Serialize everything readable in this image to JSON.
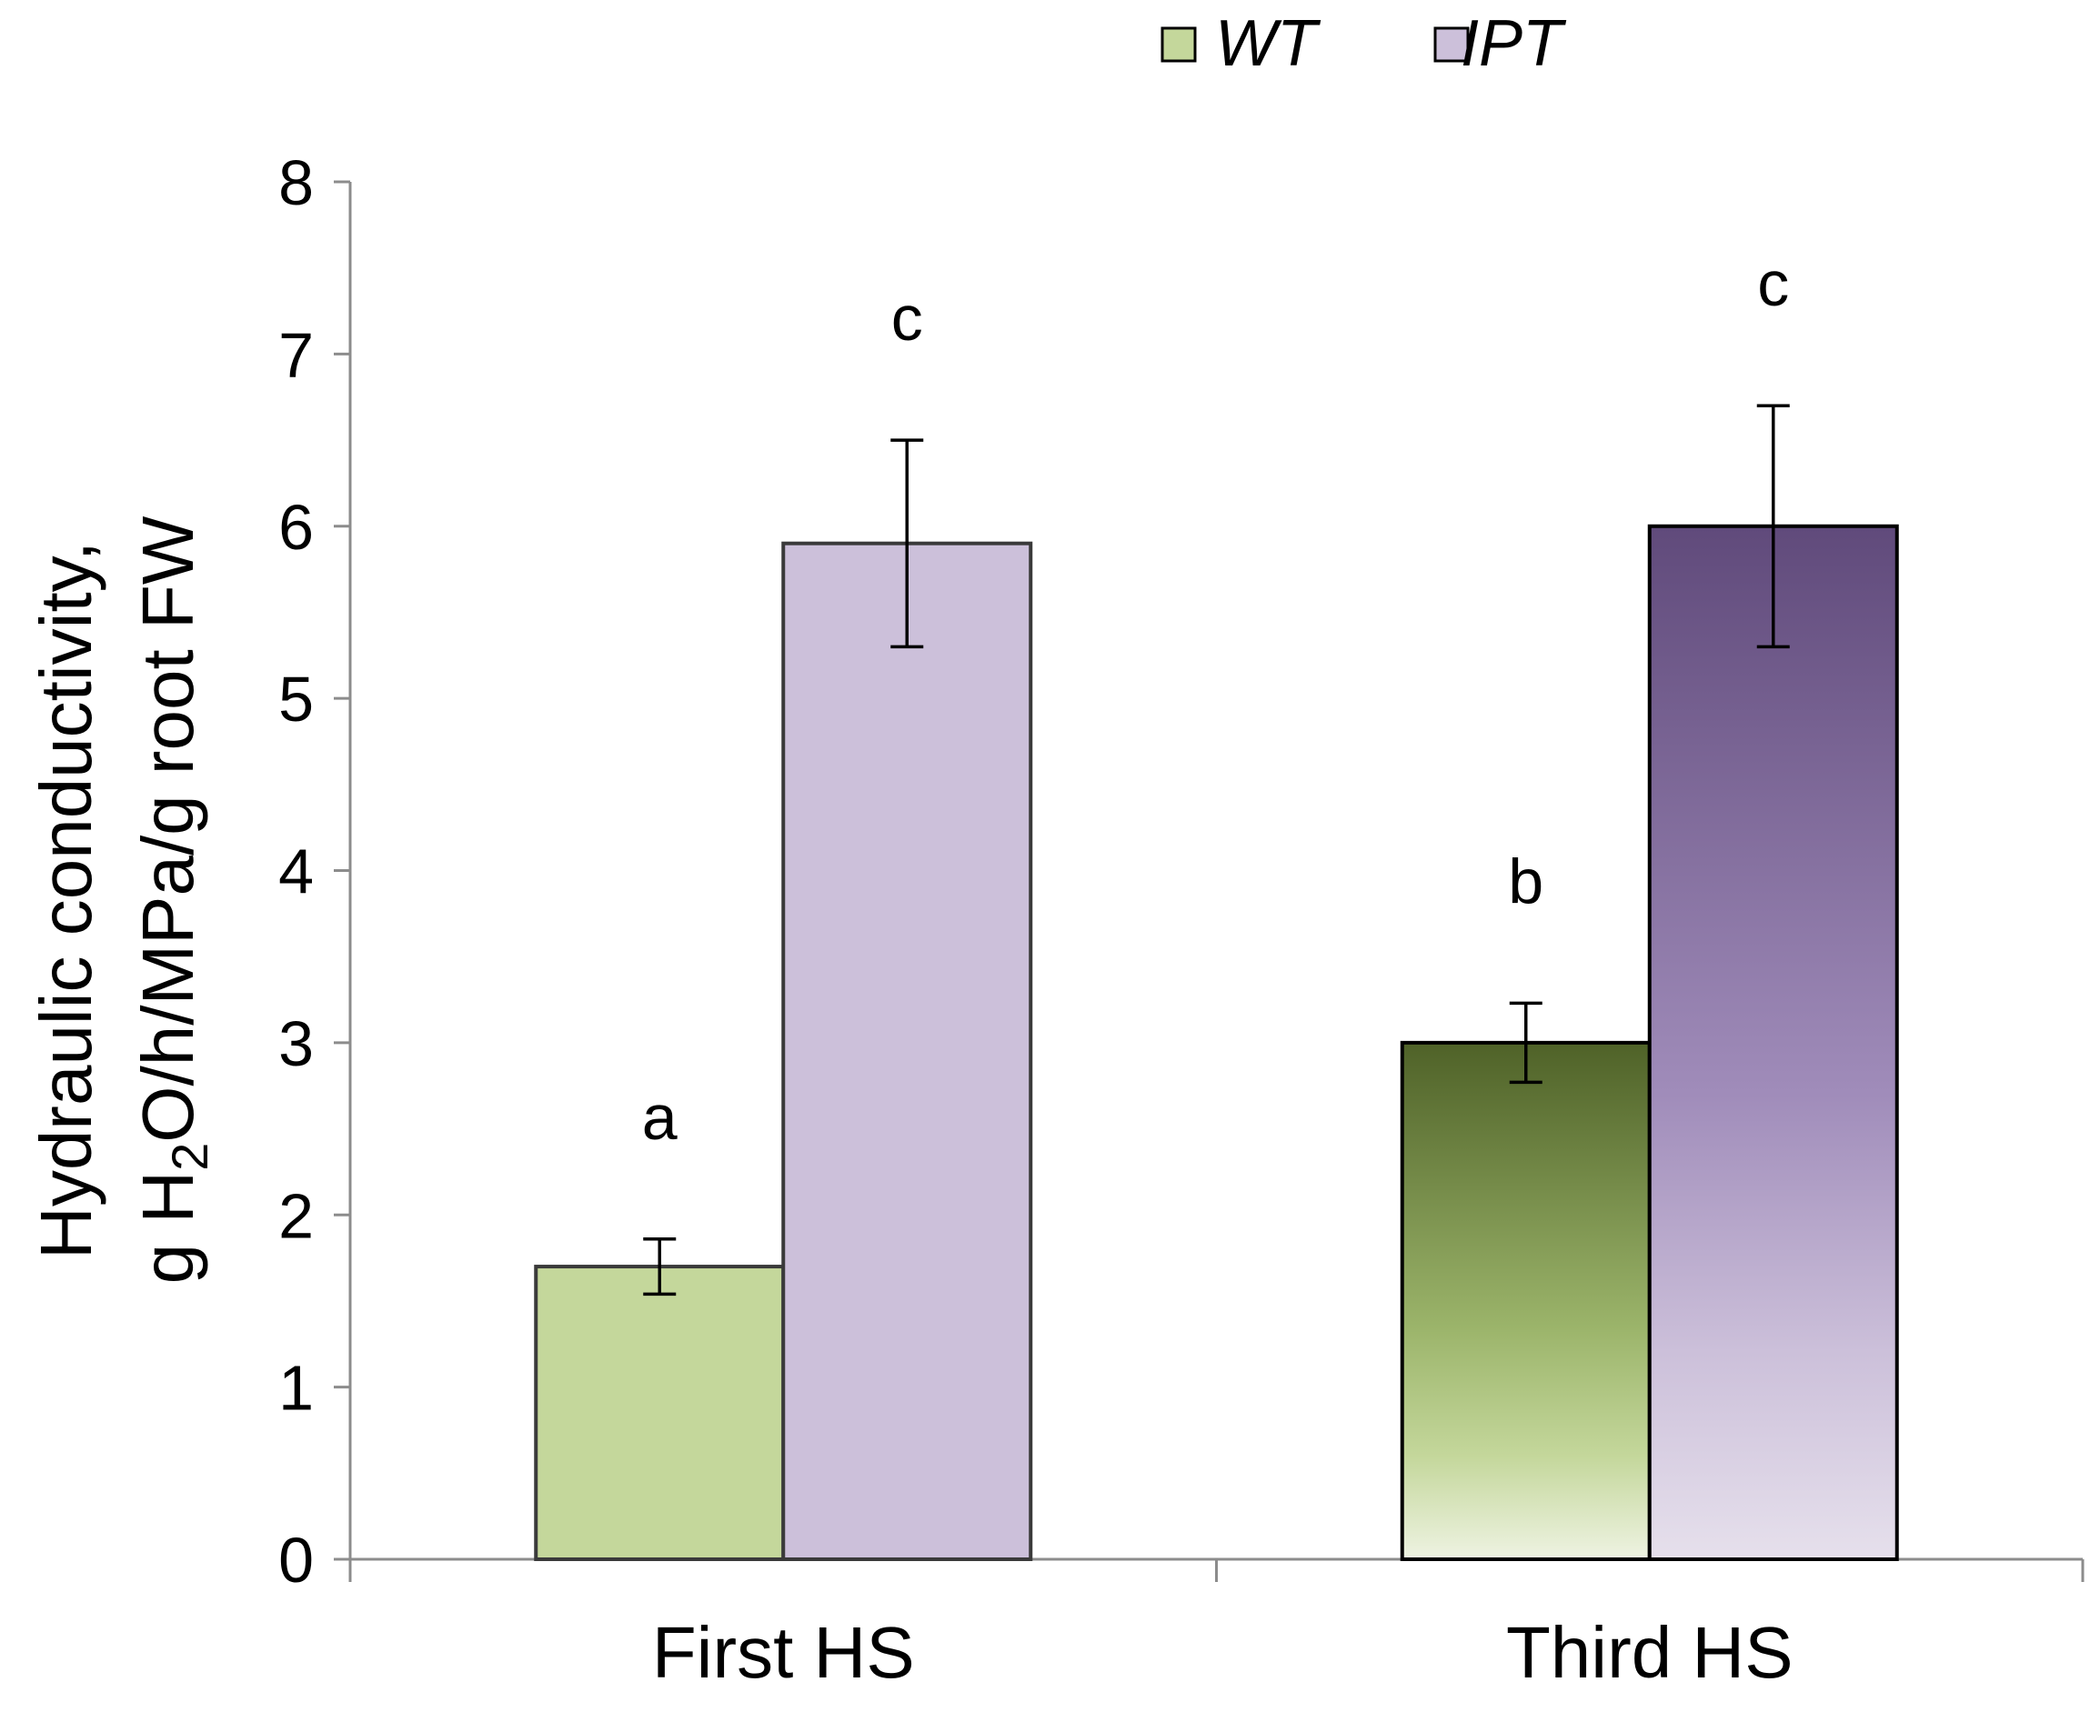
{
  "chart_data": {
    "type": "bar",
    "categories": [
      "First HS",
      "Third HS"
    ],
    "series": [
      {
        "name": "WT",
        "values": [
          1.7,
          3.0
        ],
        "errors": [
          0.16,
          0.23
        ],
        "significance": [
          "a",
          "b"
        ],
        "colors": [
          "#c4d79b",
          "#4f6228"
        ]
      },
      {
        "name": "IPT",
        "values": [
          5.9,
          6.0
        ],
        "errors": [
          0.6,
          0.7
        ],
        "significance": [
          "c",
          "c"
        ],
        "colors": [
          "#ccc0da",
          "#604a7b"
        ]
      }
    ],
    "ylim": [
      0,
      8
    ],
    "yticks": [
      "0",
      "1",
      "2",
      "3",
      "4",
      "5",
      "6",
      "7",
      "8"
    ],
    "ylabel_line1": "Hydraulic conductivity,",
    "ylabel_line2_prefix": "g H",
    "ylabel_line2_subscript": "2",
    "ylabel_line2_suffix": "O/h/MPa/g root FW",
    "xlabel": "",
    "legend_position": "top",
    "grid": false
  }
}
